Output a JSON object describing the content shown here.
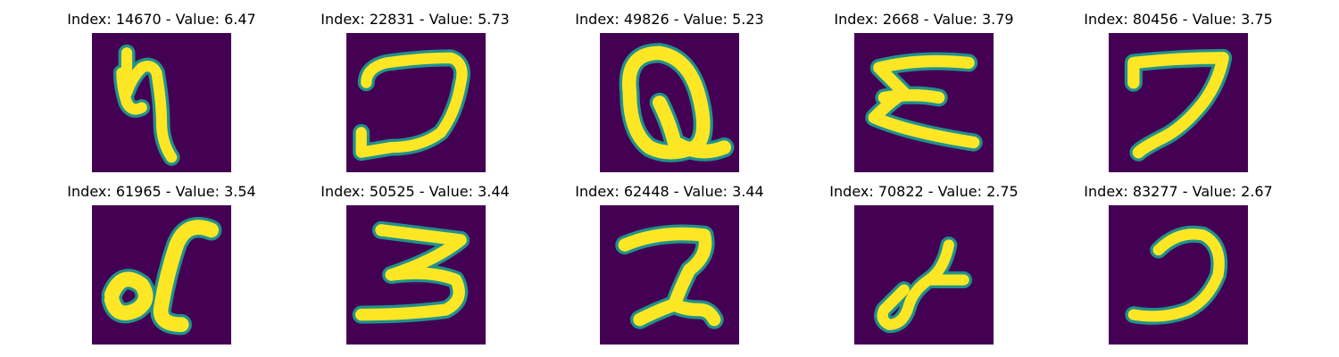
{
  "panels": [
    {
      "title": "Index: 14670 - Value: 6.47",
      "glyph": "digit-glyph-a"
    },
    {
      "title": "Index: 22831 - Value: 5.73",
      "glyph": "digit-glyph-b"
    },
    {
      "title": "Index: 49826 - Value: 5.23",
      "glyph": "digit-glyph-c"
    },
    {
      "title": "Index: 2668 - Value: 3.79",
      "glyph": "digit-glyph-d"
    },
    {
      "title": "Index: 80456 - Value: 3.75",
      "glyph": "digit-glyph-e"
    },
    {
      "title": "Index: 61965 - Value: 3.54",
      "glyph": "digit-glyph-f"
    },
    {
      "title": "Index: 50525 - Value: 3.44",
      "glyph": "digit-glyph-g"
    },
    {
      "title": "Index: 62448 - Value: 3.44",
      "glyph": "digit-glyph-h"
    },
    {
      "title": "Index: 70822 - Value: 2.75",
      "glyph": "digit-glyph-i"
    },
    {
      "title": "Index: 83277 - Value: 2.67",
      "glyph": "digit-glyph-j"
    }
  ],
  "colors": {
    "background": "#440154",
    "edge": "#21918c",
    "stroke": "#fde725"
  }
}
